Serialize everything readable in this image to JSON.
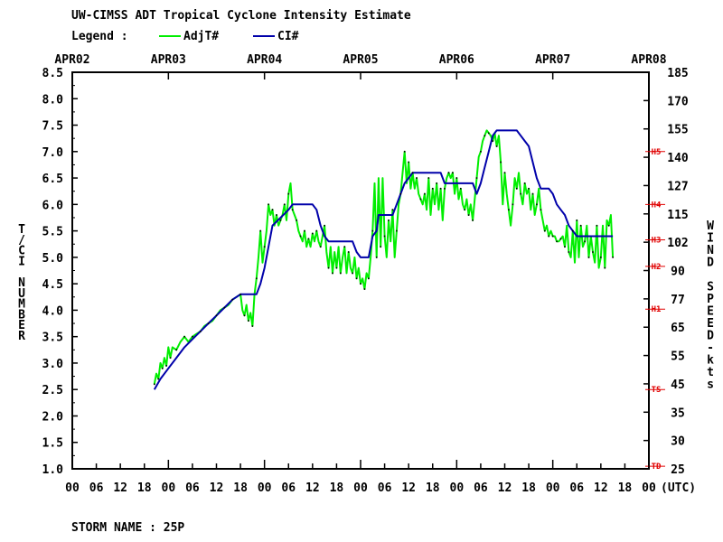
{
  "chart_data": {
    "type": "line",
    "title": "UW-CIMSS ADT Tropical Cyclone Intensity Estimate",
    "legend_label": "Legend :",
    "legend_placement": "top",
    "ylabel_left": "T/CI NUMBER",
    "ylabel_right": "WIND SPEED-kts",
    "ylim": [
      1.0,
      8.5
    ],
    "yticks_left": [
      "8.5",
      "8.0",
      "7.5",
      "7.0",
      "6.5",
      "6.0",
      "5.5",
      "5.0",
      "4.5",
      "4.0",
      "3.5",
      "3.0",
      "2.5",
      "2.0",
      "1.5",
      "1.0"
    ],
    "yticks_right": [
      "185",
      "170",
      "155",
      "140",
      "127",
      "115",
      "102",
      "90",
      "77",
      "65",
      "55",
      "45",
      "35",
      "30",
      "25"
    ],
    "category_markers": [
      {
        "label": "H5",
        "t": 7.0
      },
      {
        "label": "H4",
        "t": 6.0
      },
      {
        "label": "H3",
        "t": 5.33
      },
      {
        "label": "H2",
        "t": 4.83
      },
      {
        "label": "H1",
        "t": 4.02
      },
      {
        "label": "TS",
        "t": 2.5
      },
      {
        "label": "TD",
        "t": 1.05
      }
    ],
    "date_labels": [
      "APR02",
      "APR03",
      "APR04",
      "APR05",
      "APR06",
      "APR07",
      "APR08"
    ],
    "xtick_labels": [
      "00",
      "06",
      "12",
      "18",
      "00",
      "06",
      "12",
      "18",
      "00",
      "06",
      "12",
      "18",
      "00",
      "06",
      "12",
      "18",
      "00",
      "06",
      "12",
      "18",
      "00",
      "06",
      "12",
      "18",
      "00"
    ],
    "xunit_label": "(UTC)",
    "xlim_hours": [
      0,
      144
    ],
    "series": [
      {
        "name": "AdjT#",
        "color": "#00ee00",
        "points": [
          [
            20.5,
            2.6
          ],
          [
            21,
            2.8
          ],
          [
            21.5,
            2.7
          ],
          [
            22,
            3.0
          ],
          [
            22.5,
            2.9
          ],
          [
            23,
            3.1
          ],
          [
            23.5,
            2.95
          ],
          [
            24,
            3.3
          ],
          [
            24.5,
            3.1
          ],
          [
            25,
            3.3
          ],
          [
            26,
            3.25
          ],
          [
            27,
            3.4
          ],
          [
            28,
            3.5
          ],
          [
            29,
            3.4
          ],
          [
            30,
            3.5
          ],
          [
            31,
            3.55
          ],
          [
            32,
            3.6
          ],
          [
            33,
            3.7
          ],
          [
            34,
            3.75
          ],
          [
            35,
            3.8
          ],
          [
            36,
            3.9
          ],
          [
            37,
            4.0
          ],
          [
            38,
            4.05
          ],
          [
            39,
            4.1
          ],
          [
            40,
            4.2
          ],
          [
            41,
            4.25
          ],
          [
            42,
            4.3
          ],
          [
            42.5,
            4.0
          ],
          [
            43,
            3.9
          ],
          [
            43.5,
            4.1
          ],
          [
            44,
            3.8
          ],
          [
            44.5,
            3.95
          ],
          [
            45,
            3.7
          ],
          [
            45.5,
            4.3
          ],
          [
            46,
            4.6
          ],
          [
            46.5,
            5.0
          ],
          [
            47,
            5.5
          ],
          [
            47.5,
            4.9
          ],
          [
            48,
            5.2
          ],
          [
            48.5,
            5.5
          ],
          [
            49,
            6.0
          ],
          [
            49.5,
            5.8
          ],
          [
            50,
            5.9
          ],
          [
            50.5,
            5.6
          ],
          [
            51,
            5.8
          ],
          [
            51.5,
            5.6
          ],
          [
            52,
            5.7
          ],
          [
            52.5,
            5.8
          ],
          [
            53,
            6.0
          ],
          [
            53.5,
            5.7
          ],
          [
            54,
            6.2
          ],
          [
            54.5,
            6.4
          ],
          [
            55,
            5.9
          ],
          [
            55.5,
            5.8
          ],
          [
            56,
            5.7
          ],
          [
            56.5,
            5.5
          ],
          [
            57,
            5.4
          ],
          [
            57.5,
            5.3
          ],
          [
            58,
            5.5
          ],
          [
            58.5,
            5.2
          ],
          [
            59,
            5.35
          ],
          [
            59.5,
            5.2
          ],
          [
            60,
            5.45
          ],
          [
            60.5,
            5.3
          ],
          [
            61,
            5.5
          ],
          [
            61.5,
            5.3
          ],
          [
            62,
            5.2
          ],
          [
            62.5,
            5.4
          ],
          [
            63,
            5.6
          ],
          [
            63.5,
            5.1
          ],
          [
            64,
            4.8
          ],
          [
            64.5,
            5.2
          ],
          [
            65,
            4.7
          ],
          [
            65.5,
            5.1
          ],
          [
            66,
            4.8
          ],
          [
            66.5,
            5.2
          ],
          [
            67,
            4.7
          ],
          [
            67.5,
            5.0
          ],
          [
            68,
            5.2
          ],
          [
            68.5,
            4.7
          ],
          [
            69,
            5.1
          ],
          [
            69.5,
            4.8
          ],
          [
            70,
            4.7
          ],
          [
            70.5,
            5.0
          ],
          [
            71,
            4.6
          ],
          [
            71.5,
            4.8
          ],
          [
            72,
            4.5
          ],
          [
            72.5,
            4.6
          ],
          [
            73,
            4.4
          ],
          [
            73.5,
            4.7
          ],
          [
            74,
            4.6
          ],
          [
            74.5,
            5.0
          ],
          [
            75,
            5.5
          ],
          [
            75.5,
            6.4
          ],
          [
            76,
            5.0
          ],
          [
            76.5,
            6.5
          ],
          [
            77,
            5.2
          ],
          [
            77.5,
            6.5
          ],
          [
            78,
            5.4
          ],
          [
            78.5,
            5.0
          ],
          [
            79,
            5.7
          ],
          [
            79.5,
            5.3
          ],
          [
            80,
            5.9
          ],
          [
            80.5,
            5.0
          ],
          [
            81,
            5.5
          ],
          [
            81.5,
            6.0
          ],
          [
            82,
            6.2
          ],
          [
            82.5,
            6.6
          ],
          [
            83,
            7.0
          ],
          [
            83.5,
            6.4
          ],
          [
            84,
            6.8
          ],
          [
            84.5,
            6.3
          ],
          [
            85,
            6.6
          ],
          [
            85.5,
            6.3
          ],
          [
            86,
            6.5
          ],
          [
            86.5,
            6.2
          ],
          [
            87,
            6.1
          ],
          [
            87.5,
            6.0
          ],
          [
            88,
            6.2
          ],
          [
            88.5,
            5.9
          ],
          [
            89,
            6.5
          ],
          [
            89.5,
            5.8
          ],
          [
            90,
            6.3
          ],
          [
            90.5,
            6.0
          ],
          [
            91,
            6.4
          ],
          [
            91.5,
            5.9
          ],
          [
            92,
            6.3
          ],
          [
            92.5,
            5.7
          ],
          [
            93,
            6.3
          ],
          [
            93.5,
            6.5
          ],
          [
            94,
            6.6
          ],
          [
            94.5,
            6.5
          ],
          [
            95,
            6.6
          ],
          [
            95.5,
            6.2
          ],
          [
            96,
            6.5
          ],
          [
            96.5,
            6.1
          ],
          [
            97,
            6.3
          ],
          [
            97.5,
            6.0
          ],
          [
            98,
            5.9
          ],
          [
            98.5,
            6.1
          ],
          [
            99,
            5.8
          ],
          [
            99.5,
            6.0
          ],
          [
            100,
            5.7
          ],
          [
            100.5,
            6.1
          ],
          [
            101,
            6.5
          ],
          [
            101.5,
            6.9
          ],
          [
            102,
            7.0
          ],
          [
            102.5,
            7.2
          ],
          [
            103,
            7.3
          ],
          [
            103.5,
            7.4
          ],
          [
            104,
            7.35
          ],
          [
            104.5,
            7.3
          ],
          [
            105,
            7.2
          ],
          [
            105.5,
            7.35
          ],
          [
            106,
            7.1
          ],
          [
            106.5,
            7.3
          ],
          [
            107,
            6.8
          ],
          [
            107.5,
            6.0
          ],
          [
            108,
            6.6
          ],
          [
            108.5,
            6.2
          ],
          [
            109,
            5.9
          ],
          [
            109.5,
            5.6
          ],
          [
            110,
            6.0
          ],
          [
            110.5,
            6.5
          ],
          [
            111,
            6.3
          ],
          [
            111.5,
            6.6
          ],
          [
            112,
            6.2
          ],
          [
            112.5,
            6.0
          ],
          [
            113,
            6.4
          ],
          [
            113.5,
            6.2
          ],
          [
            114,
            6.3
          ],
          [
            114.5,
            5.9
          ],
          [
            115,
            6.2
          ],
          [
            115.5,
            5.8
          ],
          [
            116,
            6.0
          ],
          [
            116.5,
            6.3
          ],
          [
            117,
            5.9
          ],
          [
            117.5,
            5.7
          ],
          [
            118,
            5.5
          ],
          [
            118.5,
            5.6
          ],
          [
            119,
            5.4
          ],
          [
            119.5,
            5.5
          ],
          [
            120,
            5.4
          ],
          [
            120.5,
            5.4
          ],
          [
            121,
            5.3
          ],
          [
            121.5,
            5.3
          ],
          [
            122,
            5.35
          ],
          [
            122.5,
            5.4
          ],
          [
            123,
            5.2
          ],
          [
            123.5,
            5.6
          ],
          [
            124,
            5.1
          ],
          [
            124.5,
            5.0
          ],
          [
            125,
            5.5
          ],
          [
            125.5,
            4.9
          ],
          [
            126,
            5.7
          ],
          [
            126.5,
            5.0
          ],
          [
            127,
            5.6
          ],
          [
            127.5,
            5.2
          ],
          [
            128,
            5.3
          ],
          [
            128.5,
            5.6
          ],
          [
            129,
            5.0
          ],
          [
            129.5,
            5.4
          ],
          [
            130,
            5.1
          ],
          [
            130.5,
            4.9
          ],
          [
            131,
            5.6
          ],
          [
            131.5,
            4.8
          ],
          [
            132,
            5.0
          ],
          [
            132.5,
            5.6
          ],
          [
            133,
            4.8
          ],
          [
            133.5,
            5.7
          ],
          [
            134,
            5.6
          ],
          [
            134.5,
            5.8
          ],
          [
            135,
            5.0
          ]
        ]
      },
      {
        "name": "CI#",
        "color": "#0000aa",
        "points": [
          [
            20.5,
            2.5
          ],
          [
            22,
            2.7
          ],
          [
            24,
            2.9
          ],
          [
            26,
            3.1
          ],
          [
            28,
            3.3
          ],
          [
            30,
            3.45
          ],
          [
            32,
            3.6
          ],
          [
            34,
            3.75
          ],
          [
            36,
            3.9
          ],
          [
            38,
            4.05
          ],
          [
            40,
            4.2
          ],
          [
            42,
            4.3
          ],
          [
            46,
            4.3
          ],
          [
            47,
            4.5
          ],
          [
            48,
            4.8
          ],
          [
            49,
            5.2
          ],
          [
            50,
            5.6
          ],
          [
            52,
            5.75
          ],
          [
            54,
            5.9
          ],
          [
            55,
            6.0
          ],
          [
            60,
            6.0
          ],
          [
            61,
            5.9
          ],
          [
            62,
            5.6
          ],
          [
            63,
            5.4
          ],
          [
            64,
            5.3
          ],
          [
            70,
            5.3
          ],
          [
            71,
            5.1
          ],
          [
            72,
            5.0
          ],
          [
            74,
            5.0
          ],
          [
            75,
            5.4
          ],
          [
            76,
            5.5
          ],
          [
            76.5,
            5.8
          ],
          [
            80,
            5.8
          ],
          [
            81,
            6.0
          ],
          [
            82,
            6.2
          ],
          [
            83,
            6.4
          ],
          [
            84,
            6.5
          ],
          [
            85,
            6.6
          ],
          [
            92,
            6.6
          ],
          [
            93,
            6.4
          ],
          [
            100,
            6.4
          ],
          [
            101,
            6.2
          ],
          [
            102,
            6.4
          ],
          [
            103,
            6.7
          ],
          [
            104,
            7.0
          ],
          [
            105,
            7.3
          ],
          [
            106,
            7.4
          ],
          [
            111,
            7.4
          ],
          [
            112,
            7.3
          ],
          [
            113,
            7.2
          ],
          [
            114,
            7.1
          ],
          [
            115,
            6.8
          ],
          [
            116,
            6.5
          ],
          [
            117,
            6.3
          ],
          [
            119,
            6.3
          ],
          [
            120,
            6.2
          ],
          [
            121,
            6.0
          ],
          [
            122,
            5.9
          ],
          [
            123,
            5.8
          ],
          [
            124,
            5.6
          ],
          [
            125,
            5.5
          ],
          [
            126,
            5.4
          ],
          [
            135,
            5.4
          ]
        ]
      }
    ]
  },
  "footer": {
    "storm_name": "STORM NAME : 25P"
  }
}
